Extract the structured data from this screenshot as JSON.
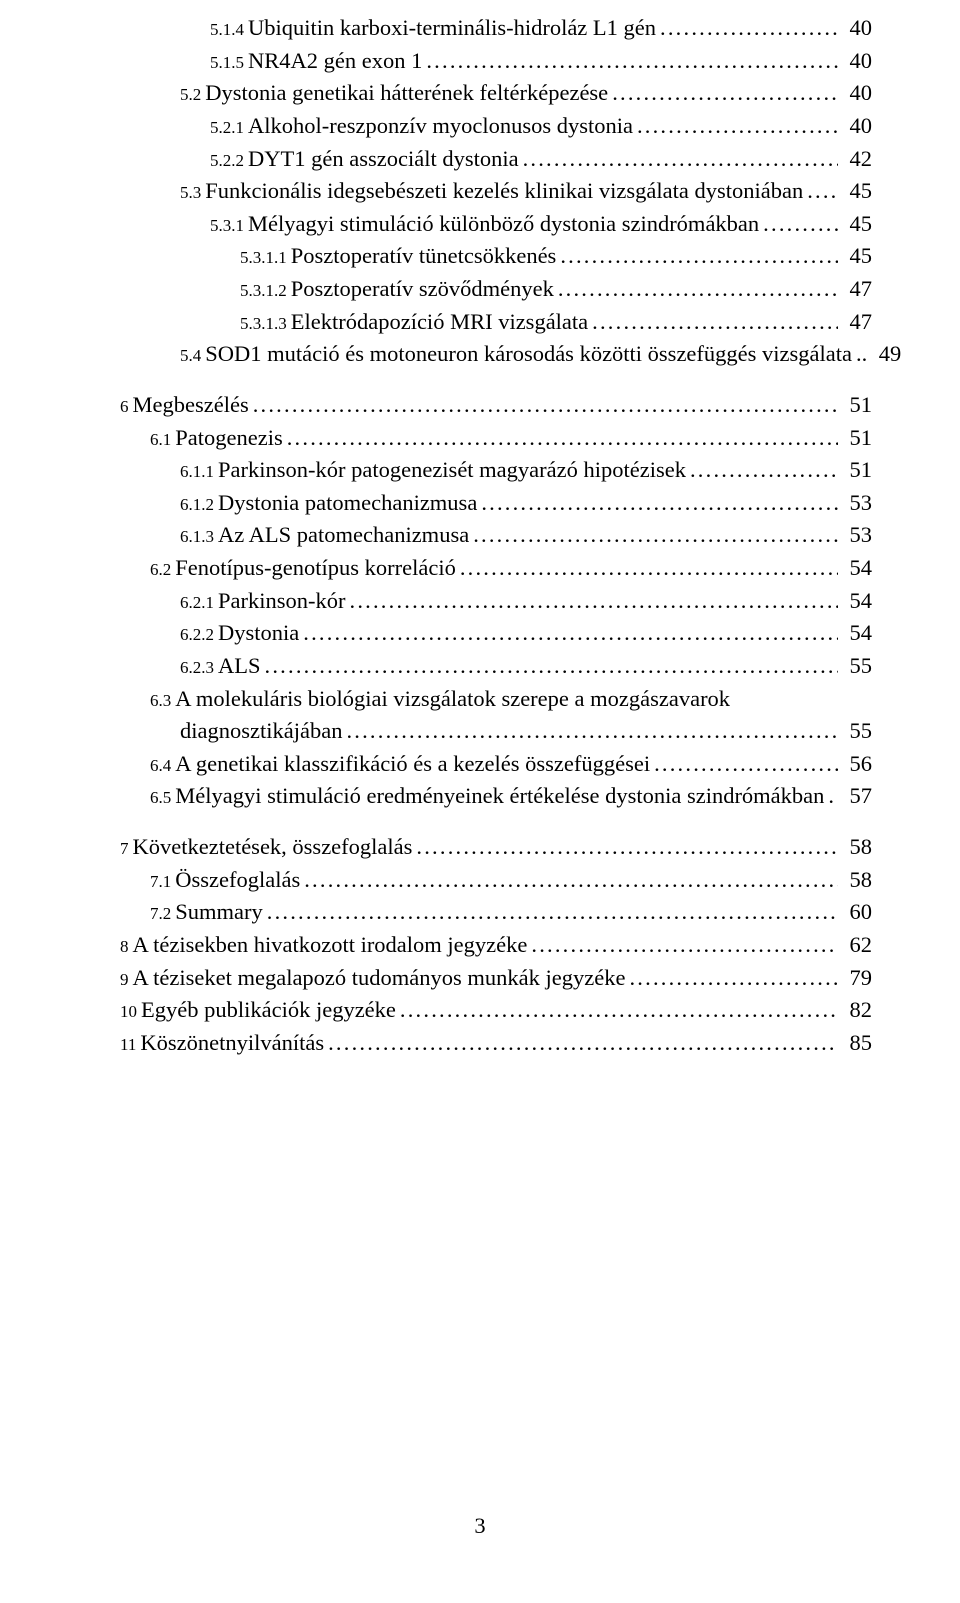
{
  "entries": [
    {
      "indent": 3,
      "num": "5.1.4",
      "title": "Ubiquitin karboxi-terminális-hidroláz L1 gén",
      "page": "40"
    },
    {
      "indent": 3,
      "num": "5.1.5",
      "title": "NR4A2 gén exon 1",
      "page": "40"
    },
    {
      "indent": 2,
      "num": "5.2",
      "title": "Dystonia genetikai hátterének feltérképezése",
      "page": "40"
    },
    {
      "indent": 3,
      "num": "5.2.1",
      "title": "Alkohol-reszponzív myoclonusos dystonia",
      "page": "40"
    },
    {
      "indent": 3,
      "num": "5.2.2",
      "title": "DYT1 gén asszociált dystonia",
      "page": "42"
    },
    {
      "indent": 2,
      "num": "5.3",
      "title": "Funkcionális idegsebészeti kezelés klinikai vizsgálata dystoniában",
      "page": "45"
    },
    {
      "indent": 3,
      "num": "5.3.1",
      "title": "Mélyagyi stimuláció különböző dystonia szindrómákban",
      "page": "45"
    },
    {
      "indent": 4,
      "num": "5.3.1.1",
      "title": "Posztoperatív tünetcsökkenés",
      "page": "45"
    },
    {
      "indent": 4,
      "num": "5.3.1.2",
      "title": "Posztoperatív szövődmények",
      "page": "47"
    },
    {
      "indent": 4,
      "num": "5.3.1.3",
      "title": "Elektródapozíció MRI vizsgálata",
      "page": "47"
    },
    {
      "indent": 2,
      "num": "5.4",
      "title": "SOD1 mutáció és motoneuron károsodás közötti összefüggés vizsgálata",
      "page": "49",
      "leader_short": true
    },
    {
      "gap": true
    },
    {
      "indent": 0,
      "num": "6",
      "title": "Megbeszélés",
      "page": "51"
    },
    {
      "indent": 1,
      "num": "6.1",
      "title": "Patogenezis",
      "page": "51"
    },
    {
      "indent": 2,
      "num": "6.1.1",
      "title": "Parkinson-kór patogenezisét magyarázó hipotézisek",
      "page": "51"
    },
    {
      "indent": 2,
      "num": "6.1.2",
      "title": "Dystonia patomechanizmusa",
      "page": "53"
    },
    {
      "indent": 2,
      "num": "6.1.3",
      "title": "Az ALS patomechanizmusa",
      "page": "53"
    },
    {
      "indent": 1,
      "num": "6.2",
      "title": "Fenotípus-genotípus korreláció",
      "page": "54"
    },
    {
      "indent": 2,
      "num": "6.2.1",
      "title": "Parkinson-kór",
      "page": "54"
    },
    {
      "indent": 2,
      "num": "6.2.2",
      "title": "Dystonia",
      "page": "54"
    },
    {
      "indent": 2,
      "num": "6.2.3",
      "title": "ALS",
      "page": "55"
    },
    {
      "indent": 1,
      "num": "6.3",
      "title_lines": [
        "A molekuláris biológiai vizsgálatok szerepe a mozgászavarok",
        "diagnosztikájában"
      ],
      "cont_indent": 2,
      "page": "55"
    },
    {
      "indent": 1,
      "num": "6.4",
      "title": "A genetikai klasszifikáció és a kezelés összefüggései",
      "page": "56"
    },
    {
      "indent": 1,
      "num": "6.5",
      "title": "Mélyagyi stimuláció eredményeinek értékelése dystonia szindrómákban",
      "page": "57",
      "leader_short": true,
      "leader_text": " ."
    },
    {
      "gap": true
    },
    {
      "indent": 0,
      "num": "7",
      "title": "Következtetések, összefoglalás",
      "page": "58"
    },
    {
      "indent": 1,
      "num": "7.1",
      "title": "Összefoglalás",
      "page": "58"
    },
    {
      "indent": 1,
      "num": "7.2",
      "title": "Summary",
      "page": "60"
    },
    {
      "indent": 0,
      "num": "8",
      "title": "A tézisekben hivatkozott irodalom jegyzéke",
      "page": "62"
    },
    {
      "indent": 0,
      "num": "9",
      "title": "A téziseket megalapozó tudományos munkák jegyzéke",
      "page": "79"
    },
    {
      "indent": 0,
      "num": "10",
      "title": "Egyéb publikációk jegyzéke",
      "page": "82"
    },
    {
      "indent": 0,
      "num": "11",
      "title": "Köszönetnyilvánítás",
      "page": "85"
    }
  ],
  "page_number": "3"
}
